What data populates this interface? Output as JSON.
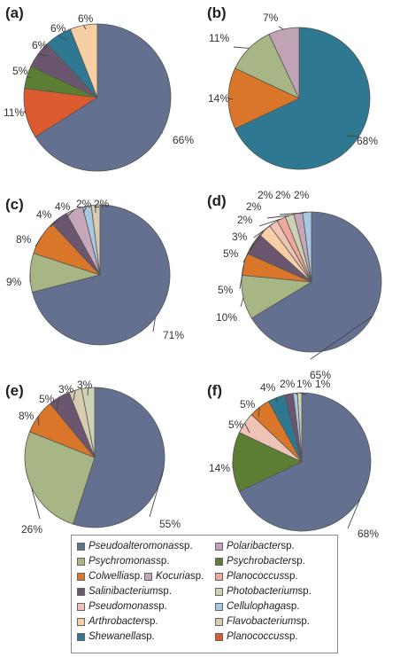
{
  "colors": {
    "Pseudoalteromonas": "#64708f",
    "Psychromonas": "#a8b584",
    "Colwellia": "#d9762a",
    "Kocuria": "#c6a7b9",
    "Salinibacterium": "#6b5670",
    "Pseudomonas": "#efc4b6",
    "Arthrobacter": "#f8cfa4",
    "Shewanella": "#2f7892",
    "Polaribacter": "#c0a3b4",
    "Psychrobacter": "#5c7e32",
    "Planococcus_light": "#eea99a",
    "Photobacterium": "#cdd2b2",
    "Cellulophaga": "#a9c7e0",
    "Flavobacterium": "#d8ccb0",
    "Planococcus_red": "#db5a30"
  },
  "chart_data": [
    {
      "type": "pie",
      "panel": "(a)",
      "slices": [
        {
          "label": "66%",
          "value": 66,
          "color_key": "Pseudoalteromonas"
        },
        {
          "label": "11%",
          "value": 11,
          "color_key": "Planococcus_red"
        },
        {
          "label": "5%",
          "value": 5,
          "color_key": "Psychrobacter"
        },
        {
          "label": "6%",
          "value": 6,
          "color_key": "Salinibacterium"
        },
        {
          "label": "6%",
          "value": 6,
          "color_key": "Shewanella"
        },
        {
          "label": "6%",
          "value": 6,
          "color_key": "Arthrobacter"
        }
      ]
    },
    {
      "type": "pie",
      "panel": "(b)",
      "slices": [
        {
          "label": "68%",
          "value": 68,
          "color_key": "Shewanella"
        },
        {
          "label": "14%",
          "value": 14,
          "color_key": "Colwellia"
        },
        {
          "label": "11%",
          "value": 11,
          "color_key": "Psychromonas"
        },
        {
          "label": "7%",
          "value": 7,
          "color_key": "Polaribacter"
        }
      ]
    },
    {
      "type": "pie",
      "panel": "(c)",
      "slices": [
        {
          "label": "71%",
          "value": 71,
          "color_key": "Pseudoalteromonas"
        },
        {
          "label": "9%",
          "value": 9,
          "color_key": "Psychromonas"
        },
        {
          "label": "8%",
          "value": 8,
          "color_key": "Colwellia"
        },
        {
          "label": "4%",
          "value": 4,
          "color_key": "Salinibacterium"
        },
        {
          "label": "4%",
          "value": 4,
          "color_key": "Kocuria"
        },
        {
          "label": "2%",
          "value": 2,
          "color_key": "Cellulophaga"
        },
        {
          "label": "2%",
          "value": 2,
          "color_key": "Flavobacterium"
        }
      ]
    },
    {
      "type": "pie",
      "panel": "(d)",
      "slices": [
        {
          "label": "65%",
          "value": 65,
          "color_key": "Pseudoalteromonas"
        },
        {
          "label": "10%",
          "value": 10,
          "color_key": "Psychromonas"
        },
        {
          "label": "5%",
          "value": 5,
          "color_key": "Colwellia"
        },
        {
          "label": "5%",
          "value": 5,
          "color_key": "Salinibacterium"
        },
        {
          "label": "3%",
          "value": 3,
          "color_key": "Arthrobacter"
        },
        {
          "label": "2%",
          "value": 2,
          "color_key": "Pseudomonas"
        },
        {
          "label": "2%",
          "value": 2,
          "color_key": "Planococcus_light"
        },
        {
          "label": "2%",
          "value": 2,
          "color_key": "Photobacterium"
        },
        {
          "label": "2%",
          "value": 2,
          "color_key": "Kocuria"
        },
        {
          "label": "2%",
          "value": 2,
          "color_key": "Cellulophaga"
        }
      ]
    },
    {
      "type": "pie",
      "panel": "(e)",
      "slices": [
        {
          "label": "55%",
          "value": 55,
          "color_key": "Pseudoalteromonas"
        },
        {
          "label": "26%",
          "value": 26,
          "color_key": "Psychromonas"
        },
        {
          "label": "8%",
          "value": 8,
          "color_key": "Colwellia"
        },
        {
          "label": "5%",
          "value": 5,
          "color_key": "Salinibacterium"
        },
        {
          "label": "3%",
          "value": 3,
          "color_key": "Flavobacterium"
        },
        {
          "label": "3%",
          "value": 3,
          "color_key": "Photobacterium"
        }
      ]
    },
    {
      "type": "pie",
      "panel": "(f)",
      "slices": [
        {
          "label": "68%",
          "value": 68,
          "color_key": "Pseudoalteromonas"
        },
        {
          "label": "14%",
          "value": 14,
          "color_key": "Psychrobacter"
        },
        {
          "label": "5%",
          "value": 5,
          "color_key": "Pseudomonas"
        },
        {
          "label": "5%",
          "value": 5,
          "color_key": "Colwellia"
        },
        {
          "label": "4%",
          "value": 4,
          "color_key": "Shewanella"
        },
        {
          "label": "2%",
          "value": 2,
          "color_key": "Salinibacterium"
        },
        {
          "label": "1%",
          "value": 1,
          "color_key": "Cellulophaga"
        },
        {
          "label": "1%",
          "value": 1,
          "color_key": "Photobacterium"
        }
      ]
    }
  ],
  "legend": [
    {
      "genus": "Pseudoalteromonas",
      "suffix": " sp.",
      "color_key": "Pseudoalteromonas"
    },
    {
      "genus": "Polaribacter",
      "suffix": " sp.",
      "color_key": "Polaribacter"
    },
    {
      "genus": "Psychromonas",
      "suffix": " sp.",
      "color_key": "Psychromonas"
    },
    {
      "genus": "Psychrobacter",
      "suffix": " sp.",
      "color_key": "Psychrobacter"
    },
    {
      "genus": "Colwellia",
      "suffix": " sp.",
      "color_key": "Colwellia"
    },
    {
      "genus": "Kocuria",
      "suffix": " sp.",
      "color_key": "Kocuria"
    },
    {
      "genus": "Planococcus",
      "suffix": " sp.",
      "color_key": "Planococcus_light"
    },
    {
      "genus": "Salinibacterium",
      "suffix": " sp.",
      "color_key": "Salinibacterium"
    },
    {
      "genus": "Photobacterium",
      "suffix": " sp.",
      "color_key": "Photobacterium"
    },
    {
      "genus": "Pseudomonas",
      "suffix": " sp.",
      "color_key": "Pseudomonas"
    },
    {
      "genus": "Cellulophaga",
      "suffix": " sp.",
      "color_key": "Cellulophaga"
    },
    {
      "genus": "Arthrobacter",
      "suffix": " sp.",
      "color_key": "Arthrobacter"
    },
    {
      "genus": "Flavobacterium",
      "suffix": " sp.",
      "color_key": "Flavobacterium"
    },
    {
      "genus": "Shewanella",
      "suffix": " sp.",
      "color_key": "Shewanella"
    },
    {
      "genus": "Planococcus",
      "suffix": " sp.",
      "color_key": "Planococcus_red"
    }
  ]
}
